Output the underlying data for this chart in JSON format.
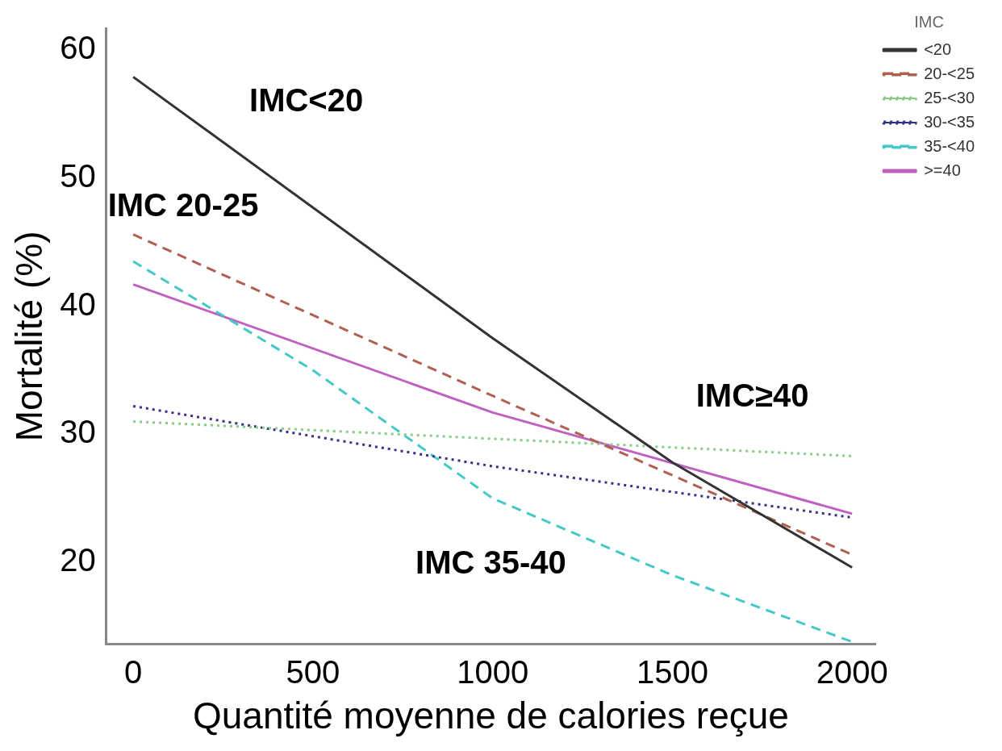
{
  "chart_data": {
    "type": "line",
    "xlabel": "Quantité moyenne de calories reçue",
    "ylabel": "Mortalité (%)",
    "legend_title": "IMC",
    "legend": "top right",
    "grid": false,
    "marker": "none",
    "xlim": [
      -75,
      2065
    ],
    "ylim": [
      13.6,
      61.7
    ],
    "xticks": [
      0,
      500,
      1000,
      1500,
      2000
    ],
    "yticks": [
      20,
      30,
      40,
      50,
      60
    ],
    "series": [
      {
        "name": "<20",
        "color": "#333333",
        "line_style": "solid",
        "x": [
          0,
          1000,
          1500,
          2000
        ],
        "values": [
          57.9,
          37.5,
          27.8,
          19.6
        ]
      },
      {
        "name": "20-<25",
        "color": "#b06050",
        "line_style": "dashed",
        "x": [
          0,
          1000,
          2000
        ],
        "values": [
          45.6,
          33,
          20.6
        ]
      },
      {
        "name": "25-<30",
        "color": "#88cc88",
        "line_style": "dotted",
        "x": [
          0,
          2000
        ],
        "values": [
          31,
          28.3
        ]
      },
      {
        "name": "30-<35",
        "color": "#333388",
        "line_style": "dotted",
        "x": [
          0,
          1000,
          2000
        ],
        "values": [
          32.2,
          27.5,
          23.5
        ]
      },
      {
        "name": "35-<40",
        "color": "#44c8c8",
        "line_style": "dashed",
        "x": [
          0,
          500,
          1000,
          1500,
          2000
        ],
        "values": [
          43.5,
          35,
          25,
          19,
          13.8
        ]
      },
      {
        "name": ">=40",
        "color": "#c060c0",
        "line_style": "solid",
        "x": [
          0,
          1000,
          2000
        ],
        "values": [
          41.7,
          31.7,
          23.8
        ]
      }
    ],
    "annotations": [
      "IMC<20",
      "IMC 20-25",
      "IMC≥40",
      "IMC 35-40"
    ]
  }
}
